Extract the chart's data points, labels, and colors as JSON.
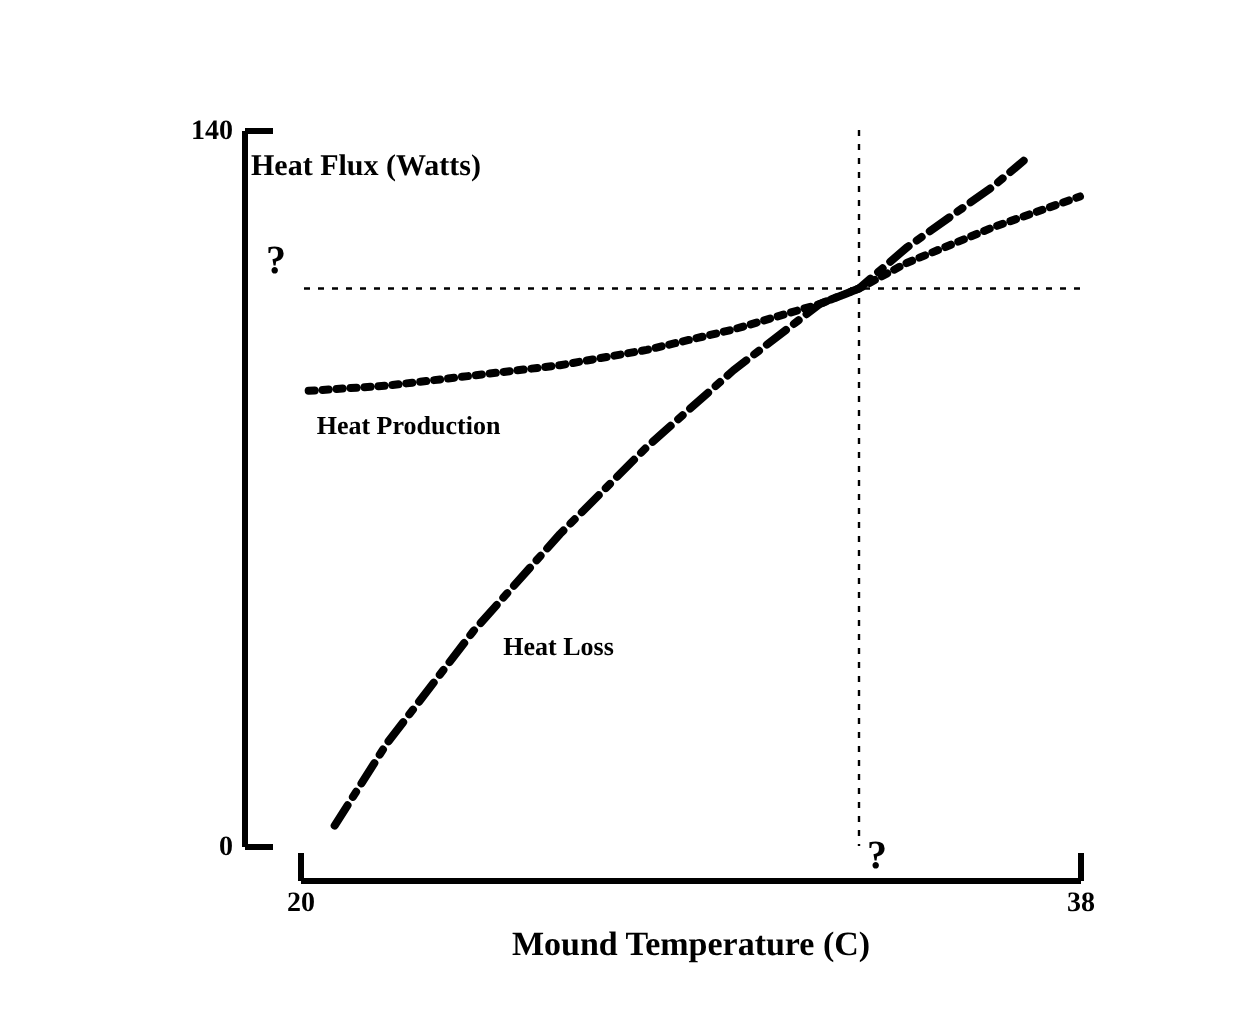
{
  "chart_data": {
    "type": "line",
    "ylabel": "Heat Flux (Watts)",
    "xlabel": "Mound Temperature (C)",
    "xlim": [
      20,
      38
    ],
    "ylim": [
      0,
      140
    ],
    "xticks": [
      20,
      38
    ],
    "yticks": [
      0,
      140
    ],
    "grid": false,
    "legend": false,
    "marker": "none",
    "series": [
      {
        "name": "Heat Production",
        "color": "#000000",
        "line_style": "dotted",
        "x": [
          20.2,
          22,
          24,
          26,
          28,
          30,
          32,
          32.9,
          34,
          36,
          38
        ],
        "values": [
          89,
          90,
          92,
          94,
          97,
          101,
          106,
          109,
          114,
          121,
          127
        ]
      },
      {
        "name": "Heat Loss",
        "color": "#000000",
        "line_style": "dashdot",
        "x": [
          20.8,
          22,
          24,
          26,
          28,
          30,
          32,
          32.9,
          34,
          36,
          36.7
        ],
        "values": [
          4,
          20,
          42,
          61,
          78,
          93,
          106,
          109,
          117,
          129,
          134
        ]
      }
    ],
    "ref_lines": [
      {
        "axis": "y",
        "value": 109,
        "label": "?",
        "line_style": "dotted",
        "color": "#000000"
      },
      {
        "axis": "x",
        "value": 32.9,
        "label": "?",
        "line_style": "dotted",
        "color": "#000000"
      }
    ]
  }
}
